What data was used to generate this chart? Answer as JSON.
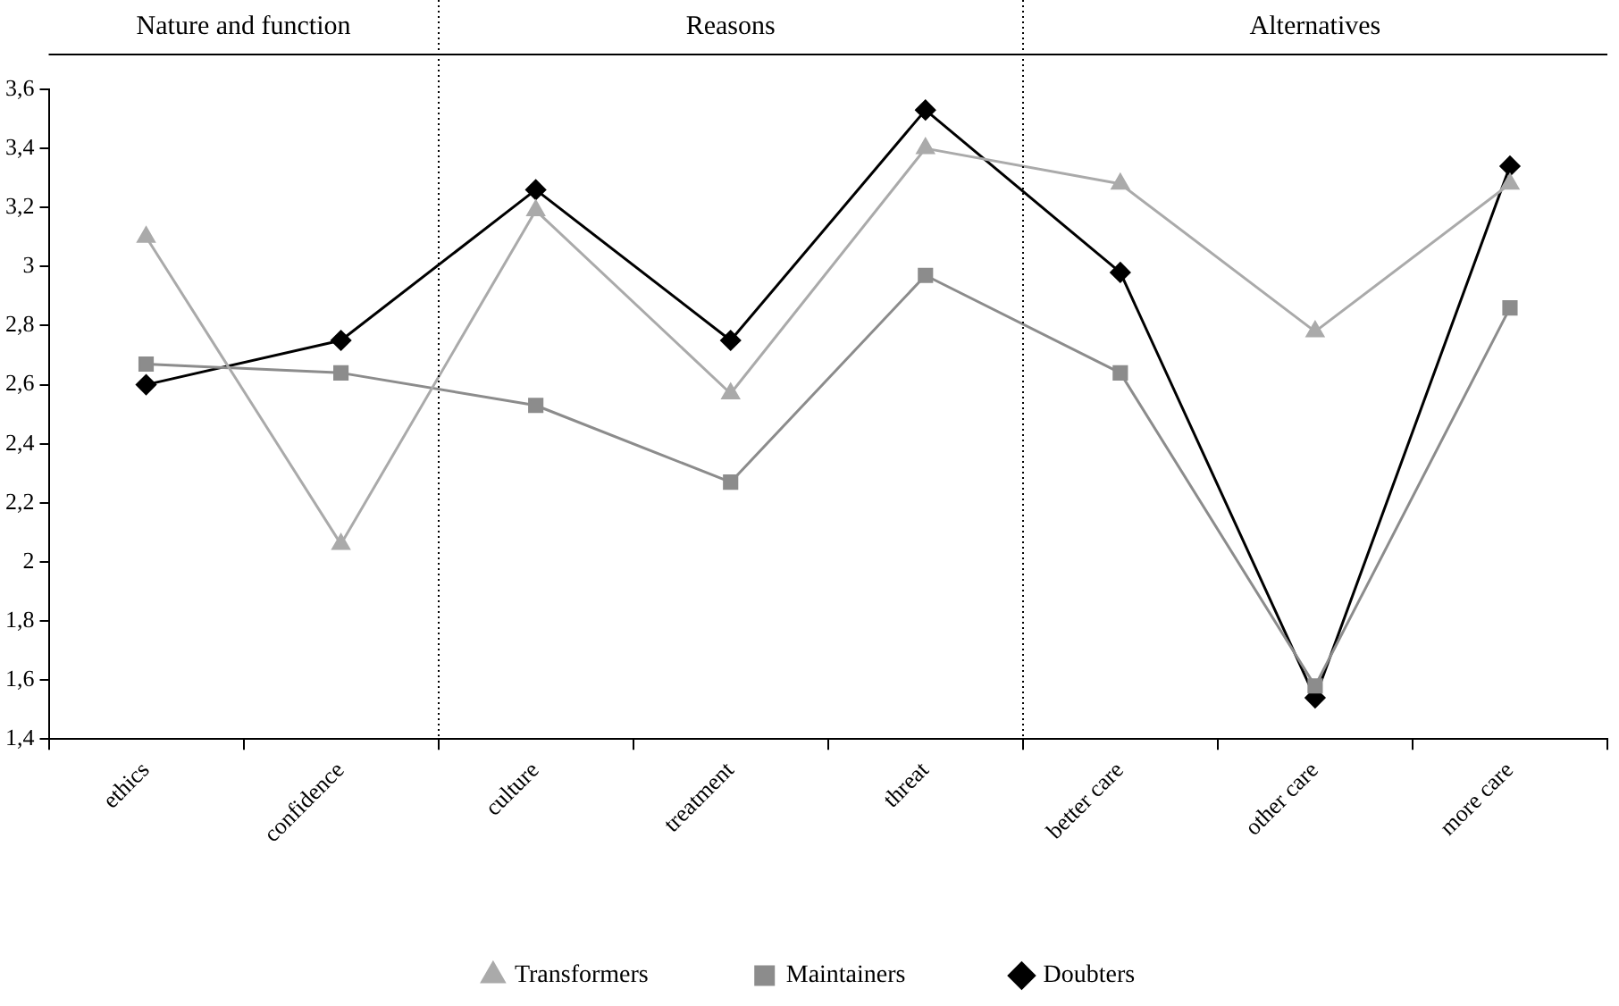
{
  "chart_data": {
    "type": "line",
    "categories": [
      "ethics",
      "confidence",
      "culture",
      "treatment",
      "threat",
      "better care",
      "other care",
      "more care"
    ],
    "series": [
      {
        "name": "Transformers",
        "color": "#aaaaaa",
        "marker": "triangle",
        "values": [
          3.1,
          2.06,
          3.19,
          2.57,
          3.4,
          3.28,
          2.78,
          3.28
        ]
      },
      {
        "name": "Maintainers",
        "color": "#8c8c8c",
        "marker": "square",
        "values": [
          2.67,
          2.64,
          2.53,
          2.27,
          2.97,
          2.64,
          1.58,
          2.86
        ]
      },
      {
        "name": "Doubters",
        "color": "#000000",
        "marker": "diamond",
        "values": [
          2.6,
          2.75,
          3.26,
          2.75,
          3.53,
          2.98,
          1.54,
          3.34
        ]
      }
    ],
    "ylim": [
      1.4,
      3.6
    ],
    "yticks": [
      {
        "value": 1.4,
        "label": "1,4"
      },
      {
        "value": 1.6,
        "label": "1,6"
      },
      {
        "value": 1.8,
        "label": "1,8"
      },
      2,
      {
        "value": 2.2,
        "label": "2,2"
      },
      {
        "value": 2.4,
        "label": "2,4"
      },
      {
        "value": 2.6,
        "label": "2,6"
      },
      {
        "value": 2.8,
        "label": "2,8"
      },
      3,
      {
        "value": 3.2,
        "label": "3,2"
      },
      {
        "value": 3.4,
        "label": "3,4"
      },
      {
        "value": 3.6,
        "label": "3,6"
      }
    ],
    "annotations": [
      "Nature and function",
      "Reasons",
      "Alternatives"
    ],
    "grid": false,
    "legend": "bottom",
    "line_style": "solid"
  }
}
